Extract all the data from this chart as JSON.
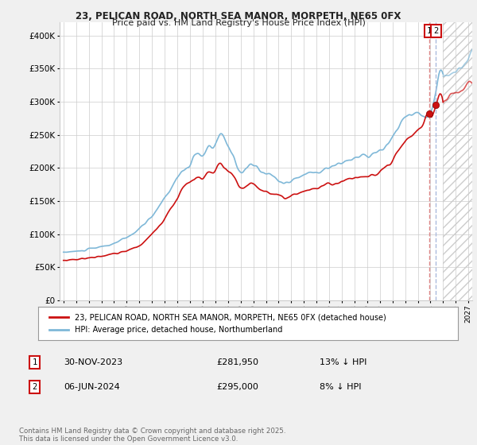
{
  "title_line1": "23, PELICAN ROAD, NORTH SEA MANOR, MORPETH, NE65 0FX",
  "title_line2": "Price paid vs. HM Land Registry's House Price Index (HPI)",
  "ylabel_ticks": [
    "£0",
    "£50K",
    "£100K",
    "£150K",
    "£200K",
    "£250K",
    "£300K",
    "£350K",
    "£400K"
  ],
  "ytick_values": [
    0,
    50000,
    100000,
    150000,
    200000,
    250000,
    300000,
    350000,
    400000
  ],
  "ylim": [
    0,
    420000
  ],
  "xlim_start": 1994.7,
  "xlim_end": 2027.3,
  "hpi_color": "#7fb8d8",
  "price_color": "#cc1111",
  "dashed_line_color_red": "#dd4444",
  "dashed_line_color_blue": "#aaccee",
  "legend_label_red": "23, PELICAN ROAD, NORTH SEA MANOR, MORPETH, NE65 0FX (detached house)",
  "legend_label_blue": "HPI: Average price, detached house, Northumberland",
  "transaction1_label": "1",
  "transaction1_date": "30-NOV-2023",
  "transaction1_price": "£281,950",
  "transaction1_hpi": "13% ↓ HPI",
  "transaction2_label": "2",
  "transaction2_date": "06-JUN-2024",
  "transaction2_price": "£295,000",
  "transaction2_hpi": "8% ↓ HPI",
  "footer": "Contains HM Land Registry data © Crown copyright and database right 2025.\nThis data is licensed under the Open Government Licence v3.0.",
  "background_color": "#f0f0f0",
  "plot_bg_color": "#ffffff",
  "transaction1_x": 2023.917,
  "transaction1_y": 281950,
  "transaction2_x": 2024.44,
  "transaction2_y": 295000,
  "future_start": 2025.0
}
